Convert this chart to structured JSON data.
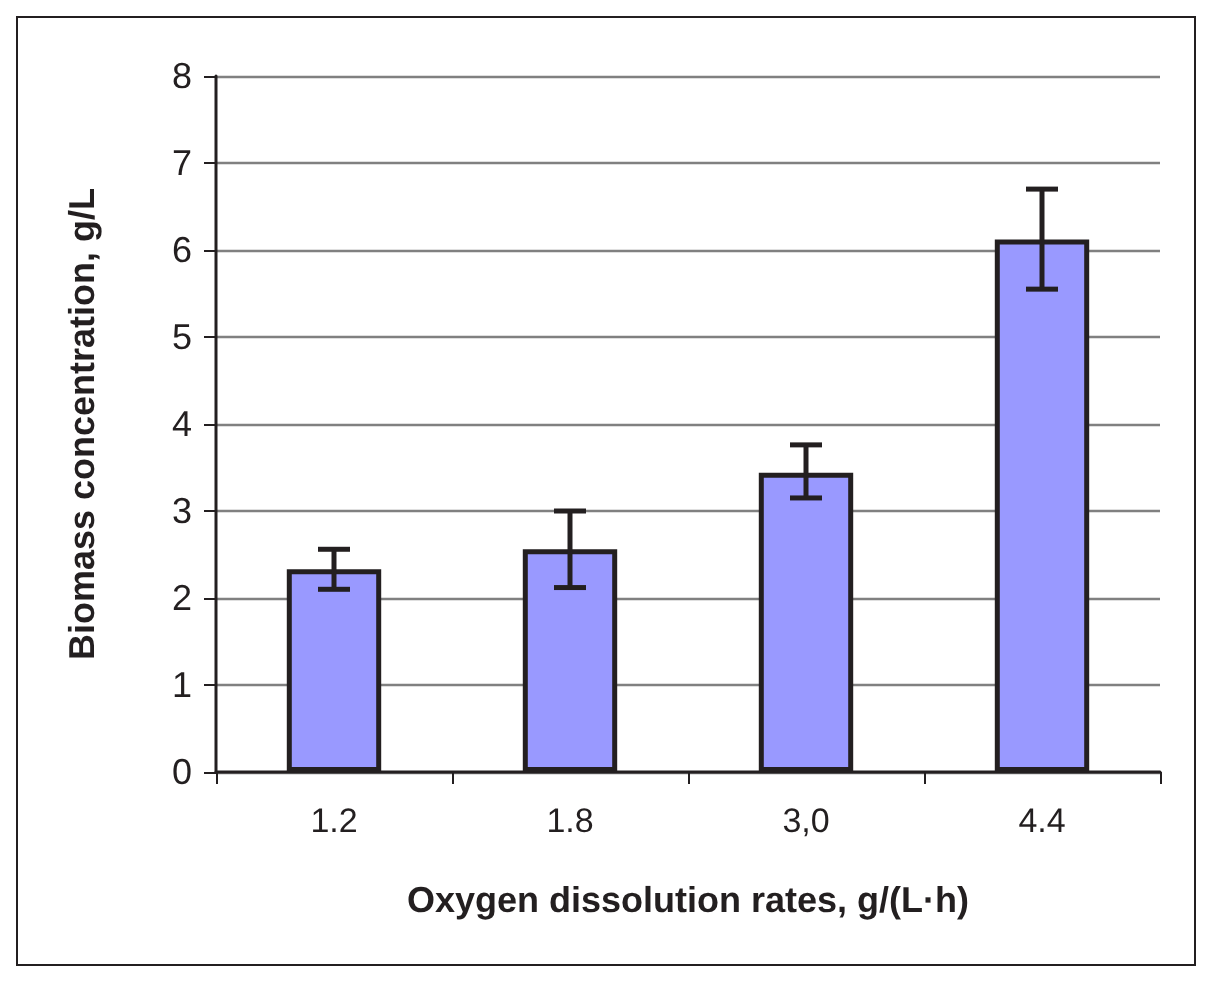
{
  "chart_data": {
    "type": "bar",
    "xlabel": "Oxygen dissolution rates, g/(L·h)",
    "ylabel": "Biomass concentration, g/L",
    "categories": [
      "1.2",
      "1.8",
      "3,0",
      "4.4"
    ],
    "values": [
      2.33,
      2.56,
      3.44,
      6.12
    ],
    "errors": [
      [
        2.1,
        2.56
      ],
      [
        2.12,
        3.0
      ],
      [
        3.15,
        3.76
      ],
      [
        5.55,
        6.7
      ]
    ],
    "color": "#9999ff",
    "ylim": [
      0,
      8
    ],
    "yticks": [
      0,
      1,
      2,
      3,
      4,
      5,
      6,
      7,
      8
    ],
    "grid": "y"
  }
}
